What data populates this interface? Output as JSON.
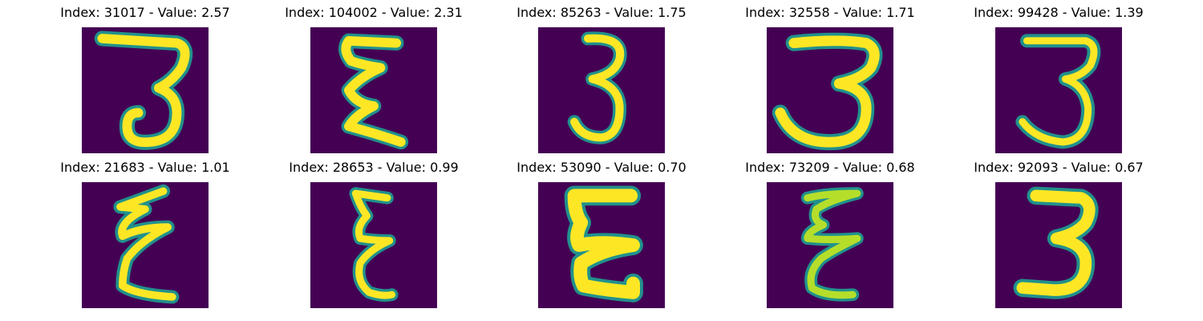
{
  "colors": {
    "background": "#440154",
    "mid": "#21918c",
    "stroke": "#fde725",
    "stroke_soft": "#b5de2b",
    "edge": "#3b528b"
  },
  "panels": [
    {
      "title": "Index: 31017 - Value: 2.57",
      "glyph": "3"
    },
    {
      "title": "Index: 104002 - Value: 2.31",
      "glyph": "3"
    },
    {
      "title": "Index: 85263 - Value: 1.75",
      "glyph": "3"
    },
    {
      "title": "Index: 32558 - Value: 1.71",
      "glyph": "3"
    },
    {
      "title": "Index: 99428 - Value: 1.39",
      "glyph": "3"
    },
    {
      "title": "Index: 21683 - Value: 1.01",
      "glyph": "3"
    },
    {
      "title": "Index: 28653 - Value: 0.99",
      "glyph": "3"
    },
    {
      "title": "Index: 53090 - Value: 0.70",
      "glyph": "3"
    },
    {
      "title": "Index: 73209 - Value: 0.68",
      "glyph": "3"
    },
    {
      "title": "Index: 92093 - Value: 0.67",
      "glyph": "3"
    }
  ]
}
